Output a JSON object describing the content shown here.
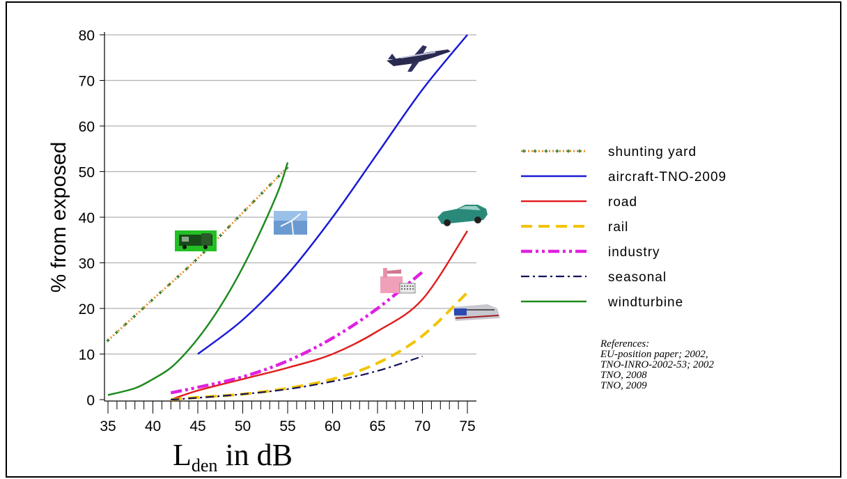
{
  "chart_data": {
    "type": "line",
    "title": "",
    "xlabel_main": "L",
    "xlabel_sub": "den",
    "xlabel_rest": " in dB",
    "ylabel": "% from exposed",
    "xlim": [
      35,
      75
    ],
    "ylim": [
      0,
      80
    ],
    "xticks": [
      35,
      40,
      45,
      50,
      55,
      60,
      65,
      70,
      75
    ],
    "yticks": [
      0,
      10,
      20,
      30,
      40,
      50,
      60,
      70,
      80
    ],
    "grid": "horizontal",
    "legend_position": "right",
    "series": [
      {
        "name": "shunting yard",
        "color": "#e8902a",
        "style": "dotted-cross",
        "x": [
          35,
          40,
          45,
          50,
          55
        ],
        "y": [
          13,
          22,
          31,
          41,
          51
        ]
      },
      {
        "name": "aircraft-TNO-2009",
        "color": "#1a1ad6",
        "style": "solid",
        "x": [
          45,
          50,
          55,
          60,
          65,
          70,
          75
        ],
        "y": [
          10,
          17.5,
          27.5,
          40,
          54,
          68,
          80
        ]
      },
      {
        "name": "road",
        "color": "#e02020",
        "style": "solid",
        "x": [
          42,
          45,
          50,
          55,
          60,
          65,
          70,
          75
        ],
        "y": [
          0,
          2,
          4.5,
          7,
          10,
          15,
          22,
          37
        ]
      },
      {
        "name": "rail",
        "color": "#f2c400",
        "style": "dashed",
        "x": [
          42,
          45,
          50,
          55,
          60,
          65,
          70,
          75
        ],
        "y": [
          0,
          0.5,
          1.2,
          2.5,
          4.5,
          8,
          14,
          23.5
        ]
      },
      {
        "name": "industry",
        "color": "#e020e0",
        "style": "dashdotdot",
        "x": [
          42,
          45,
          50,
          55,
          60,
          65,
          70
        ],
        "y": [
          1.5,
          2.7,
          5,
          8.5,
          13.5,
          20,
          28
        ]
      },
      {
        "name": "seasonal",
        "color": "#10105a",
        "style": "dashdot",
        "x": [
          42,
          45,
          50,
          55,
          60,
          65,
          70
        ],
        "y": [
          0,
          0.4,
          1.2,
          2.3,
          4,
          6.3,
          9.5
        ]
      },
      {
        "name": "windturbine",
        "color": "#1e8a1e",
        "style": "solid",
        "x": [
          35,
          38,
          40,
          42,
          44,
          46,
          48,
          50,
          52,
          54,
          55
        ],
        "y": [
          1,
          2.5,
          4.5,
          7,
          11,
          16,
          22,
          29,
          37,
          46,
          52
        ]
      }
    ],
    "references": [
      "References:",
      "EU-position paper; 2002,",
      "TNO-INRO-2002-53; 2002",
      "TNO, 2008",
      "TNO, 2009"
    ]
  },
  "icons": [
    {
      "name": "airplane-icon"
    },
    {
      "name": "car-icon"
    },
    {
      "name": "factory-icon"
    },
    {
      "name": "train-icon"
    },
    {
      "name": "locomotive-icon"
    },
    {
      "name": "windturbine-icon"
    }
  ]
}
